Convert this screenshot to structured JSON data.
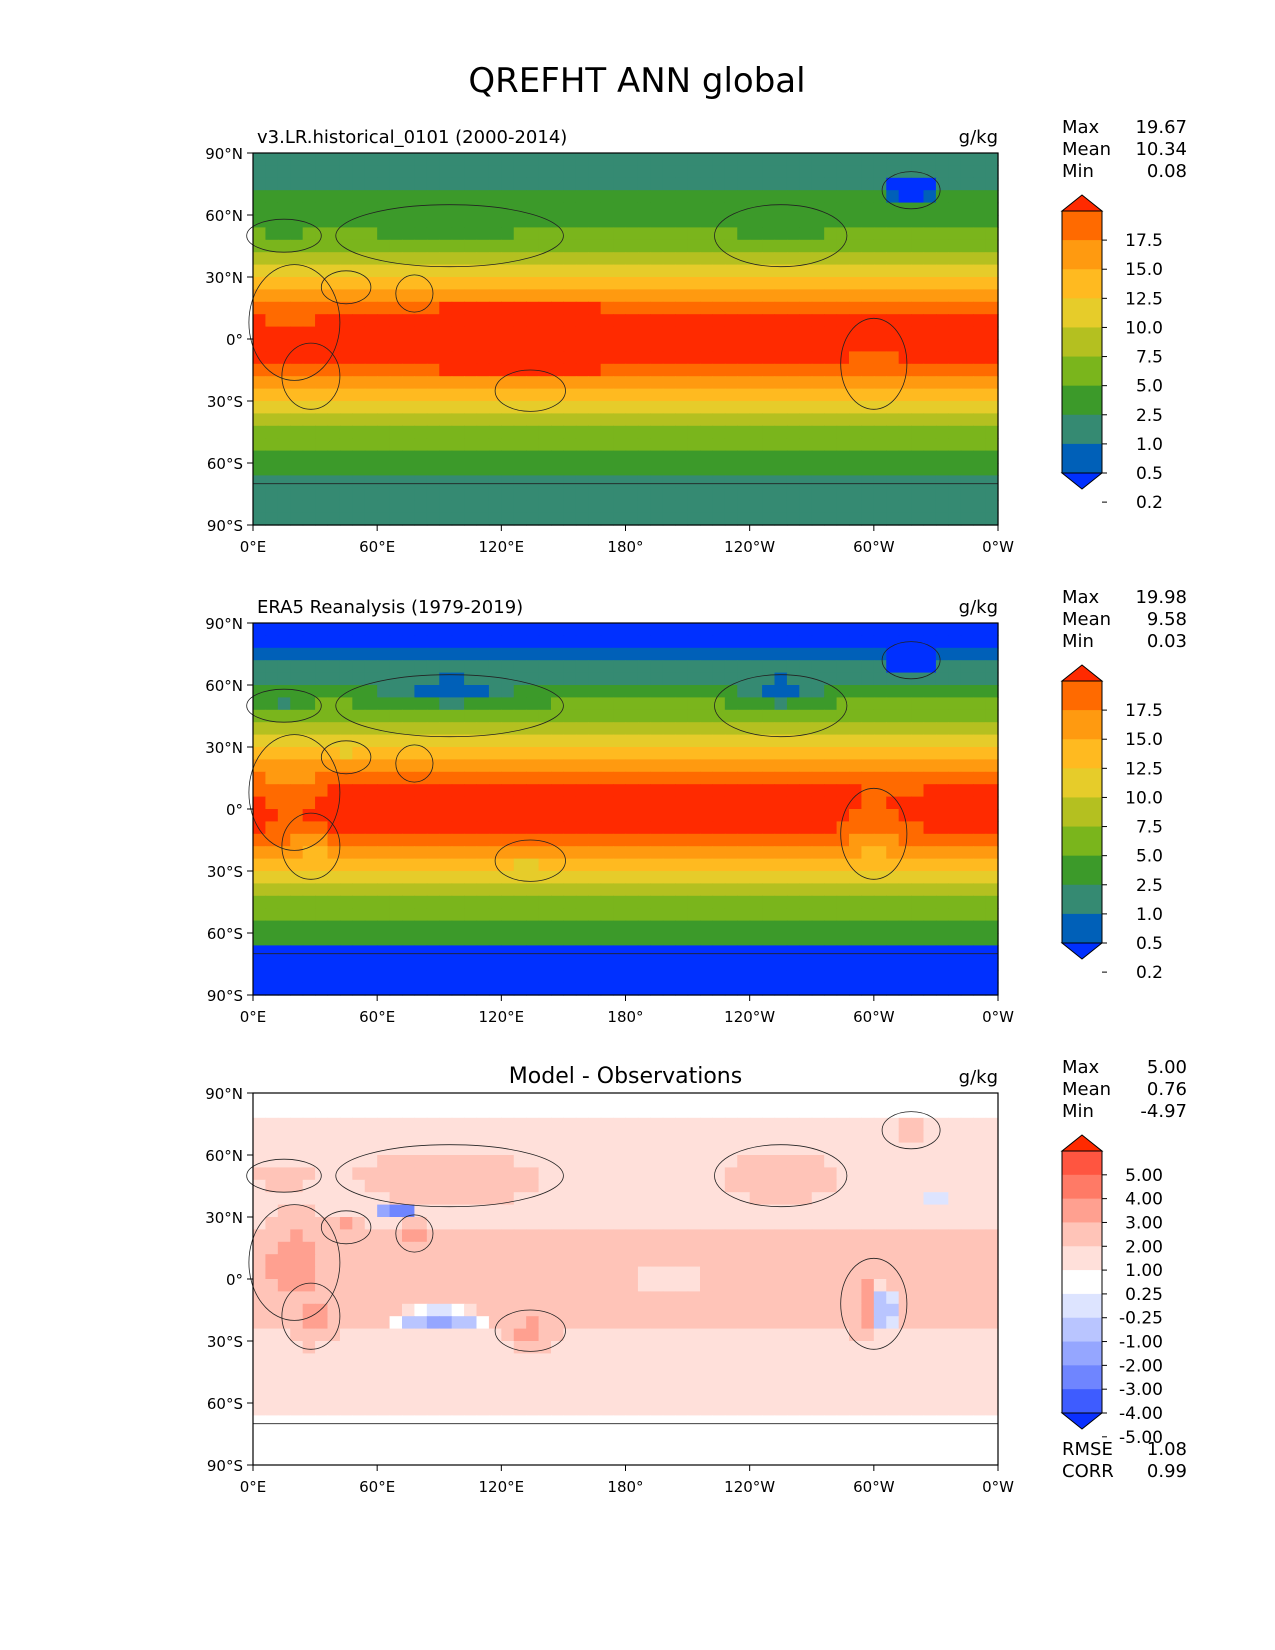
{
  "title": "QREFHT ANN global",
  "chart_data": [
    {
      "type": "heatmap",
      "subtitle": "v3.LR.historical_0101 (2000-2014)",
      "units": "g/kg",
      "stats": [
        {
          "label": "Max",
          "value": "19.67"
        },
        {
          "label": "Mean",
          "value": "10.34"
        },
        {
          "label": "Min",
          "value": "0.08"
        }
      ],
      "colorbar": {
        "levels": [
          "17.5",
          "15.0",
          "12.5",
          "10.0",
          "7.5",
          "5.0",
          "2.5",
          "1.0",
          "0.5",
          "0.2"
        ],
        "colors": [
          "#ff2a00",
          "#ff6a00",
          "#ff9a10",
          "#ffba20",
          "#e6cc2a",
          "#b4c020",
          "#7ab51c",
          "#3c9a2a",
          "#358a72",
          "#0060b8",
          "#0030ff"
        ]
      },
      "field": "model",
      "xlabel": "",
      "ylabel": "",
      "xlim": [
        0,
        360
      ],
      "ylim": [
        -90,
        90
      ]
    },
    {
      "type": "heatmap",
      "subtitle": "ERA5 Reanalysis (1979-2019)",
      "units": "g/kg",
      "stats": [
        {
          "label": "Max",
          "value": "19.98"
        },
        {
          "label": "Mean",
          "value": "9.58"
        },
        {
          "label": "Min",
          "value": "0.03"
        }
      ],
      "colorbar": {
        "levels": [
          "17.5",
          "15.0",
          "12.5",
          "10.0",
          "7.5",
          "5.0",
          "2.5",
          "1.0",
          "0.5",
          "0.2"
        ],
        "colors": [
          "#ff2a00",
          "#ff6a00",
          "#ff9a10",
          "#ffba20",
          "#e6cc2a",
          "#b4c020",
          "#7ab51c",
          "#3c9a2a",
          "#358a72",
          "#0060b8",
          "#0030ff"
        ]
      },
      "field": "obs",
      "xlabel": "",
      "ylabel": "",
      "xlim": [
        0,
        360
      ],
      "ylim": [
        -90,
        90
      ]
    },
    {
      "type": "heatmap",
      "subtitle": "Model - Observations",
      "units": "g/kg",
      "stats": [
        {
          "label": "Max",
          "value": "5.00"
        },
        {
          "label": "Mean",
          "value": "0.76"
        },
        {
          "label": "Min",
          "value": "-4.97"
        }
      ],
      "colorbar": {
        "levels": [
          "5.00",
          "4.00",
          "3.00",
          "2.00",
          "1.00",
          "0.25",
          "-0.25",
          "-1.00",
          "-2.00",
          "-3.00",
          "-4.00",
          "-5.00"
        ],
        "colors": [
          "#ff2a00",
          "#ff5540",
          "#ff7a66",
          "#ffa090",
          "#ffc4b8",
          "#ffe0da",
          "#ffffff",
          "#dde4ff",
          "#b9c5ff",
          "#95a6ff",
          "#6f85ff",
          "#3e5cff",
          "#0a30ff"
        ]
      },
      "bottom_stats": [
        {
          "label": "RMSE",
          "value": "1.08"
        },
        {
          "label": "CORR",
          "value": "0.99"
        }
      ],
      "field": "diff",
      "xlabel": "",
      "ylabel": "",
      "xlim": [
        0,
        360
      ],
      "ylim": [
        -90,
        90
      ]
    }
  ],
  "axes": {
    "lat_ticks": [
      "90°N",
      "60°N",
      "30°N",
      "0°",
      "30°S",
      "60°S",
      "90°S"
    ],
    "lon_ticks": [
      "0°E",
      "60°E",
      "120°E",
      "180°",
      "120°W",
      "60°W",
      "0°W"
    ]
  }
}
